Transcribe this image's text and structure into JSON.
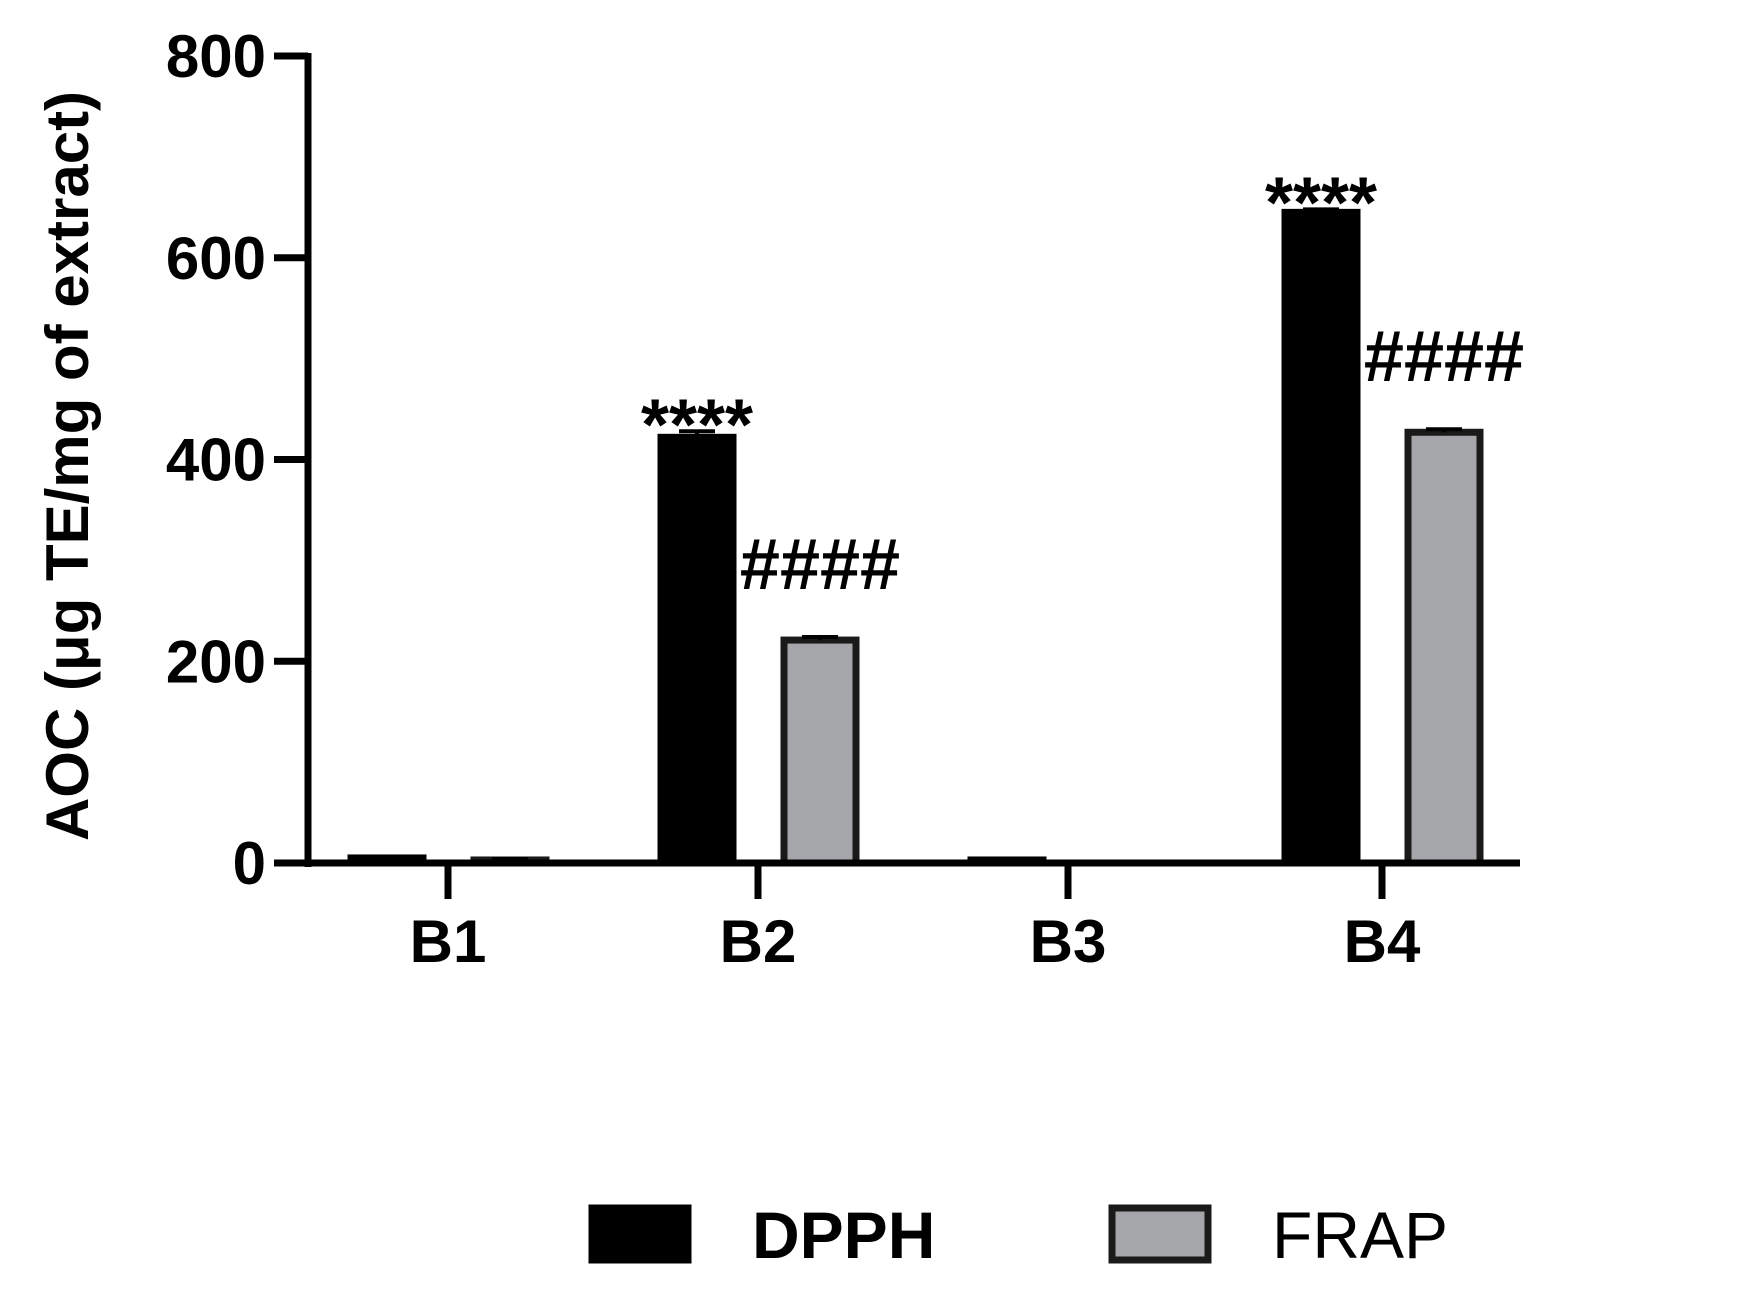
{
  "chart_data": {
    "type": "bar",
    "categories": [
      "B1",
      "B2",
      "B3",
      "B4"
    ],
    "series": [
      {
        "name": "DPPH",
        "color": "#000000",
        "values": [
          5,
          422,
          3,
          645
        ],
        "errors": [
          1,
          6,
          1,
          3
        ]
      },
      {
        "name": "FRAP",
        "color": "#a5a6a9",
        "values": [
          3,
          221,
          0,
          427
        ],
        "errors": [
          1,
          3,
          0,
          3
        ]
      }
    ],
    "ylabel": "AOC (μg TE/mg of extract)",
    "xlabel": "",
    "ylim": [
      0,
      800
    ],
    "yticks": [
      "0",
      "200",
      "400",
      "600",
      "800"
    ],
    "grid": false,
    "legend_position": "bottom",
    "annotations": [
      {
        "category": "B2",
        "series": "DPPH",
        "text": "****"
      },
      {
        "category": "B2",
        "series": "FRAP",
        "text": "####"
      },
      {
        "category": "B4",
        "series": "DPPH",
        "text": "****"
      },
      {
        "category": "B4",
        "series": "FRAP",
        "text": "####"
      }
    ]
  }
}
